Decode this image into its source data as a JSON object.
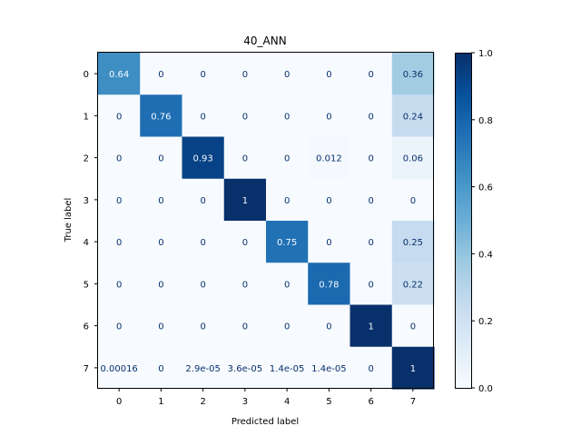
{
  "chart_data": {
    "type": "heatmap",
    "title": "40_ANN",
    "xlabel": "Predicted label",
    "ylabel": "True label",
    "x_categories": [
      "0",
      "1",
      "2",
      "3",
      "4",
      "5",
      "6",
      "7"
    ],
    "y_categories": [
      "0",
      "1",
      "2",
      "3",
      "4",
      "5",
      "6",
      "7"
    ],
    "values": [
      [
        0.64,
        0,
        0,
        0,
        0,
        0,
        0,
        0.36
      ],
      [
        0,
        0.76,
        0,
        0,
        0,
        0,
        0,
        0.24
      ],
      [
        0,
        0,
        0.93,
        0,
        0,
        0.012,
        0,
        0.06
      ],
      [
        0,
        0,
        0,
        1,
        0,
        0,
        0,
        0
      ],
      [
        0,
        0,
        0,
        0,
        0.75,
        0,
        0,
        0.25
      ],
      [
        0,
        0,
        0,
        0,
        0,
        0.78,
        0,
        0.22
      ],
      [
        0,
        0,
        0,
        0,
        0,
        0,
        1,
        0
      ],
      [
        0.00016,
        0,
        2.9e-05,
        3.6e-05,
        1.4e-05,
        1.4e-05,
        0,
        1
      ]
    ],
    "cell_labels": [
      [
        "0.64",
        "0",
        "0",
        "0",
        "0",
        "0",
        "0",
        "0.36"
      ],
      [
        "0",
        "0.76",
        "0",
        "0",
        "0",
        "0",
        "0",
        "0.24"
      ],
      [
        "0",
        "0",
        "0.93",
        "0",
        "0",
        "0.012",
        "0",
        "0.06"
      ],
      [
        "0",
        "0",
        "0",
        "1",
        "0",
        "0",
        "0",
        "0"
      ],
      [
        "0",
        "0",
        "0",
        "0",
        "0.75",
        "0",
        "0",
        "0.25"
      ],
      [
        "0",
        "0",
        "0",
        "0",
        "0",
        "0.78",
        "0",
        "0.22"
      ],
      [
        "0",
        "0",
        "0",
        "0",
        "0",
        "0",
        "1",
        "0"
      ],
      [
        "0.00016",
        "0",
        "2.9e-05",
        "3.6e-05",
        "1.4e-05",
        "1.4e-05",
        "0",
        "1"
      ]
    ],
    "colormap": "Blues",
    "colorbar": {
      "range": [
        0.0,
        1.0
      ],
      "ticks": [
        0.0,
        0.2,
        0.4,
        0.6,
        0.8,
        1.0
      ],
      "tick_labels": [
        "0.0",
        "0.2",
        "0.4",
        "0.6",
        "0.8",
        "1.0"
      ]
    },
    "grid": false
  }
}
